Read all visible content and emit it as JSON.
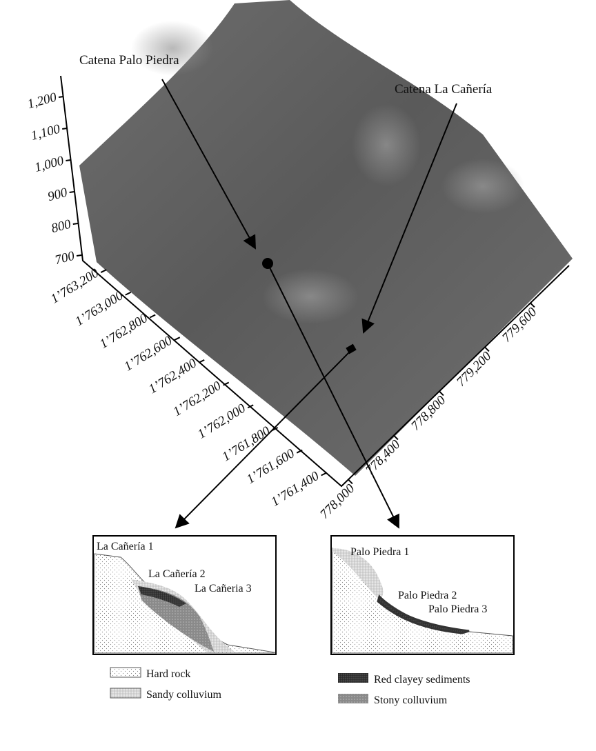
{
  "callouts": {
    "palo_piedra": "Catena Palo Piedra",
    "la_caneria": "Catena La Cañería"
  },
  "z_axis": {
    "ticks": [
      "700",
      "800",
      "900",
      "1,000",
      "1,100",
      "1,200"
    ]
  },
  "y_axis": {
    "ticks": [
      "1’763,200",
      "1’763,000",
      "1’762,800",
      "1’762,600",
      "1’762,400",
      "1’762,200",
      "1’762,000",
      "1’761,800",
      "1’761,600",
      "1’761,400"
    ]
  },
  "x_axis": {
    "ticks": [
      "778,000",
      "778,400",
      "778,800",
      "779,200",
      "779,600"
    ]
  },
  "panels": [
    {
      "labels": [
        "La Cañería 1",
        "La Cañería 2",
        "La Cañeria 3"
      ]
    },
    {
      "labels": [
        "Palo Piedra 1",
        "Palo Piedra 2",
        "Palo Piedra 3"
      ]
    }
  ],
  "legend": [
    "Hard rock",
    "Sandy colluvium",
    "Red clayey sediments",
    "Stony colluvium"
  ]
}
